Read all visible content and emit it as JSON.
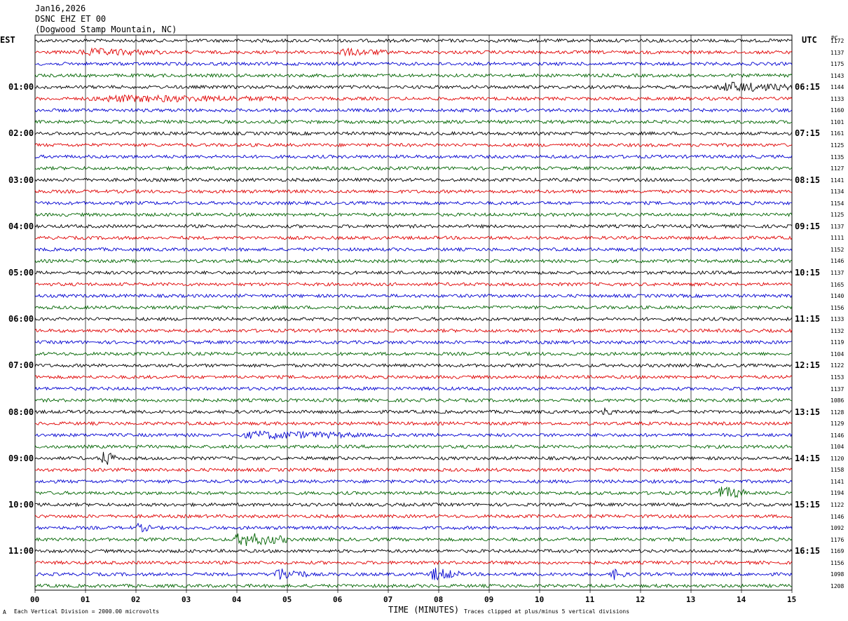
{
  "header": {
    "date": "Jan16,2026",
    "channel": "DSNC EHZ ET 00",
    "location": "(Dogwood Stamp Mountain, NC)"
  },
  "left_tz": "EST",
  "right_tz": "UTC",
  "pc_header": "PC",
  "left_hour_labels": [
    "01:00",
    "02:00",
    "03:00",
    "04:00",
    "05:00",
    "06:00",
    "07:00",
    "08:00",
    "09:00",
    "10:00",
    "11:00"
  ],
  "right_hour_labels": [
    "06:15",
    "07:15",
    "08:15",
    "09:15",
    "10:15",
    "11:15",
    "12:15",
    "13:15",
    "14:15",
    "15:15",
    "16:15"
  ],
  "pc_values": [
    "1172",
    "1137",
    "1175",
    "1143",
    "1144",
    "1133",
    "1160",
    "1101",
    "1161",
    "1125",
    "1135",
    "1127",
    "1141",
    "1134",
    "1154",
    "1125",
    "1137",
    "1111",
    "1152",
    "1146",
    "1137",
    "1165",
    "1140",
    "1156",
    "1133",
    "1132",
    "1119",
    "1104",
    "1122",
    "1153",
    "1137",
    "1086",
    "1128",
    "1129",
    "1146",
    "1104",
    "1120",
    "1158",
    "1141",
    "1194",
    "1122",
    "1146",
    "1092",
    "1176",
    "1169",
    "1156",
    "1098",
    "1208"
  ],
  "trace_colors": [
    "#000000",
    "#e00000",
    "#0000d0",
    "#006400"
  ],
  "footer": {
    "scale_note": "Each Vertical Division = 2000.00 microvolts",
    "xlabel": "TIME (MINUTES)",
    "clip_note": "Traces clipped at plus/minus 5 vertical divisions",
    "corner_mark": "A"
  },
  "chart_data": {
    "type": "line",
    "title": "DSNC EHZ ET 00",
    "xlabel": "TIME (MINUTES)",
    "xlim": [
      0,
      15
    ],
    "x_ticks": [
      "00",
      "01",
      "02",
      "03",
      "04",
      "05",
      "06",
      "07",
      "08",
      "09",
      "10",
      "11",
      "12",
      "13",
      "14",
      "15"
    ],
    "rows_per_hour": 4,
    "minutes_per_row": 15,
    "row_count": 48,
    "events": [
      {
        "row": 1,
        "start_min": 0.8,
        "end_min": 2.5,
        "amplitude": 1.4
      },
      {
        "row": 1,
        "start_min": 5.9,
        "end_min": 7.0,
        "amplitude": 1.4
      },
      {
        "row": 4,
        "start_min": 13.5,
        "end_min": 15.0,
        "amplitude": 2.2
      },
      {
        "row": 5,
        "start_min": 1.0,
        "end_min": 5.0,
        "amplitude": 1.3
      },
      {
        "row": 32,
        "start_min": 11.25,
        "end_min": 11.45,
        "amplitude": 3.0
      },
      {
        "row": 34,
        "start_min": 4.0,
        "end_min": 6.5,
        "amplitude": 1.6
      },
      {
        "row": 36,
        "start_min": 1.3,
        "end_min": 1.6,
        "amplitude": 4.0
      },
      {
        "row": 39,
        "start_min": 13.5,
        "end_min": 14.1,
        "amplitude": 3.0
      },
      {
        "row": 42,
        "start_min": 2.0,
        "end_min": 2.3,
        "amplitude": 1.8
      },
      {
        "row": 43,
        "start_min": 3.9,
        "end_min": 5.0,
        "amplitude": 3.2
      },
      {
        "row": 46,
        "start_min": 4.7,
        "end_min": 5.4,
        "amplitude": 3.0
      },
      {
        "row": 46,
        "start_min": 7.8,
        "end_min": 8.4,
        "amplitude": 3.0
      },
      {
        "row": 46,
        "start_min": 11.4,
        "end_min": 11.7,
        "amplitude": 2.6
      }
    ]
  }
}
